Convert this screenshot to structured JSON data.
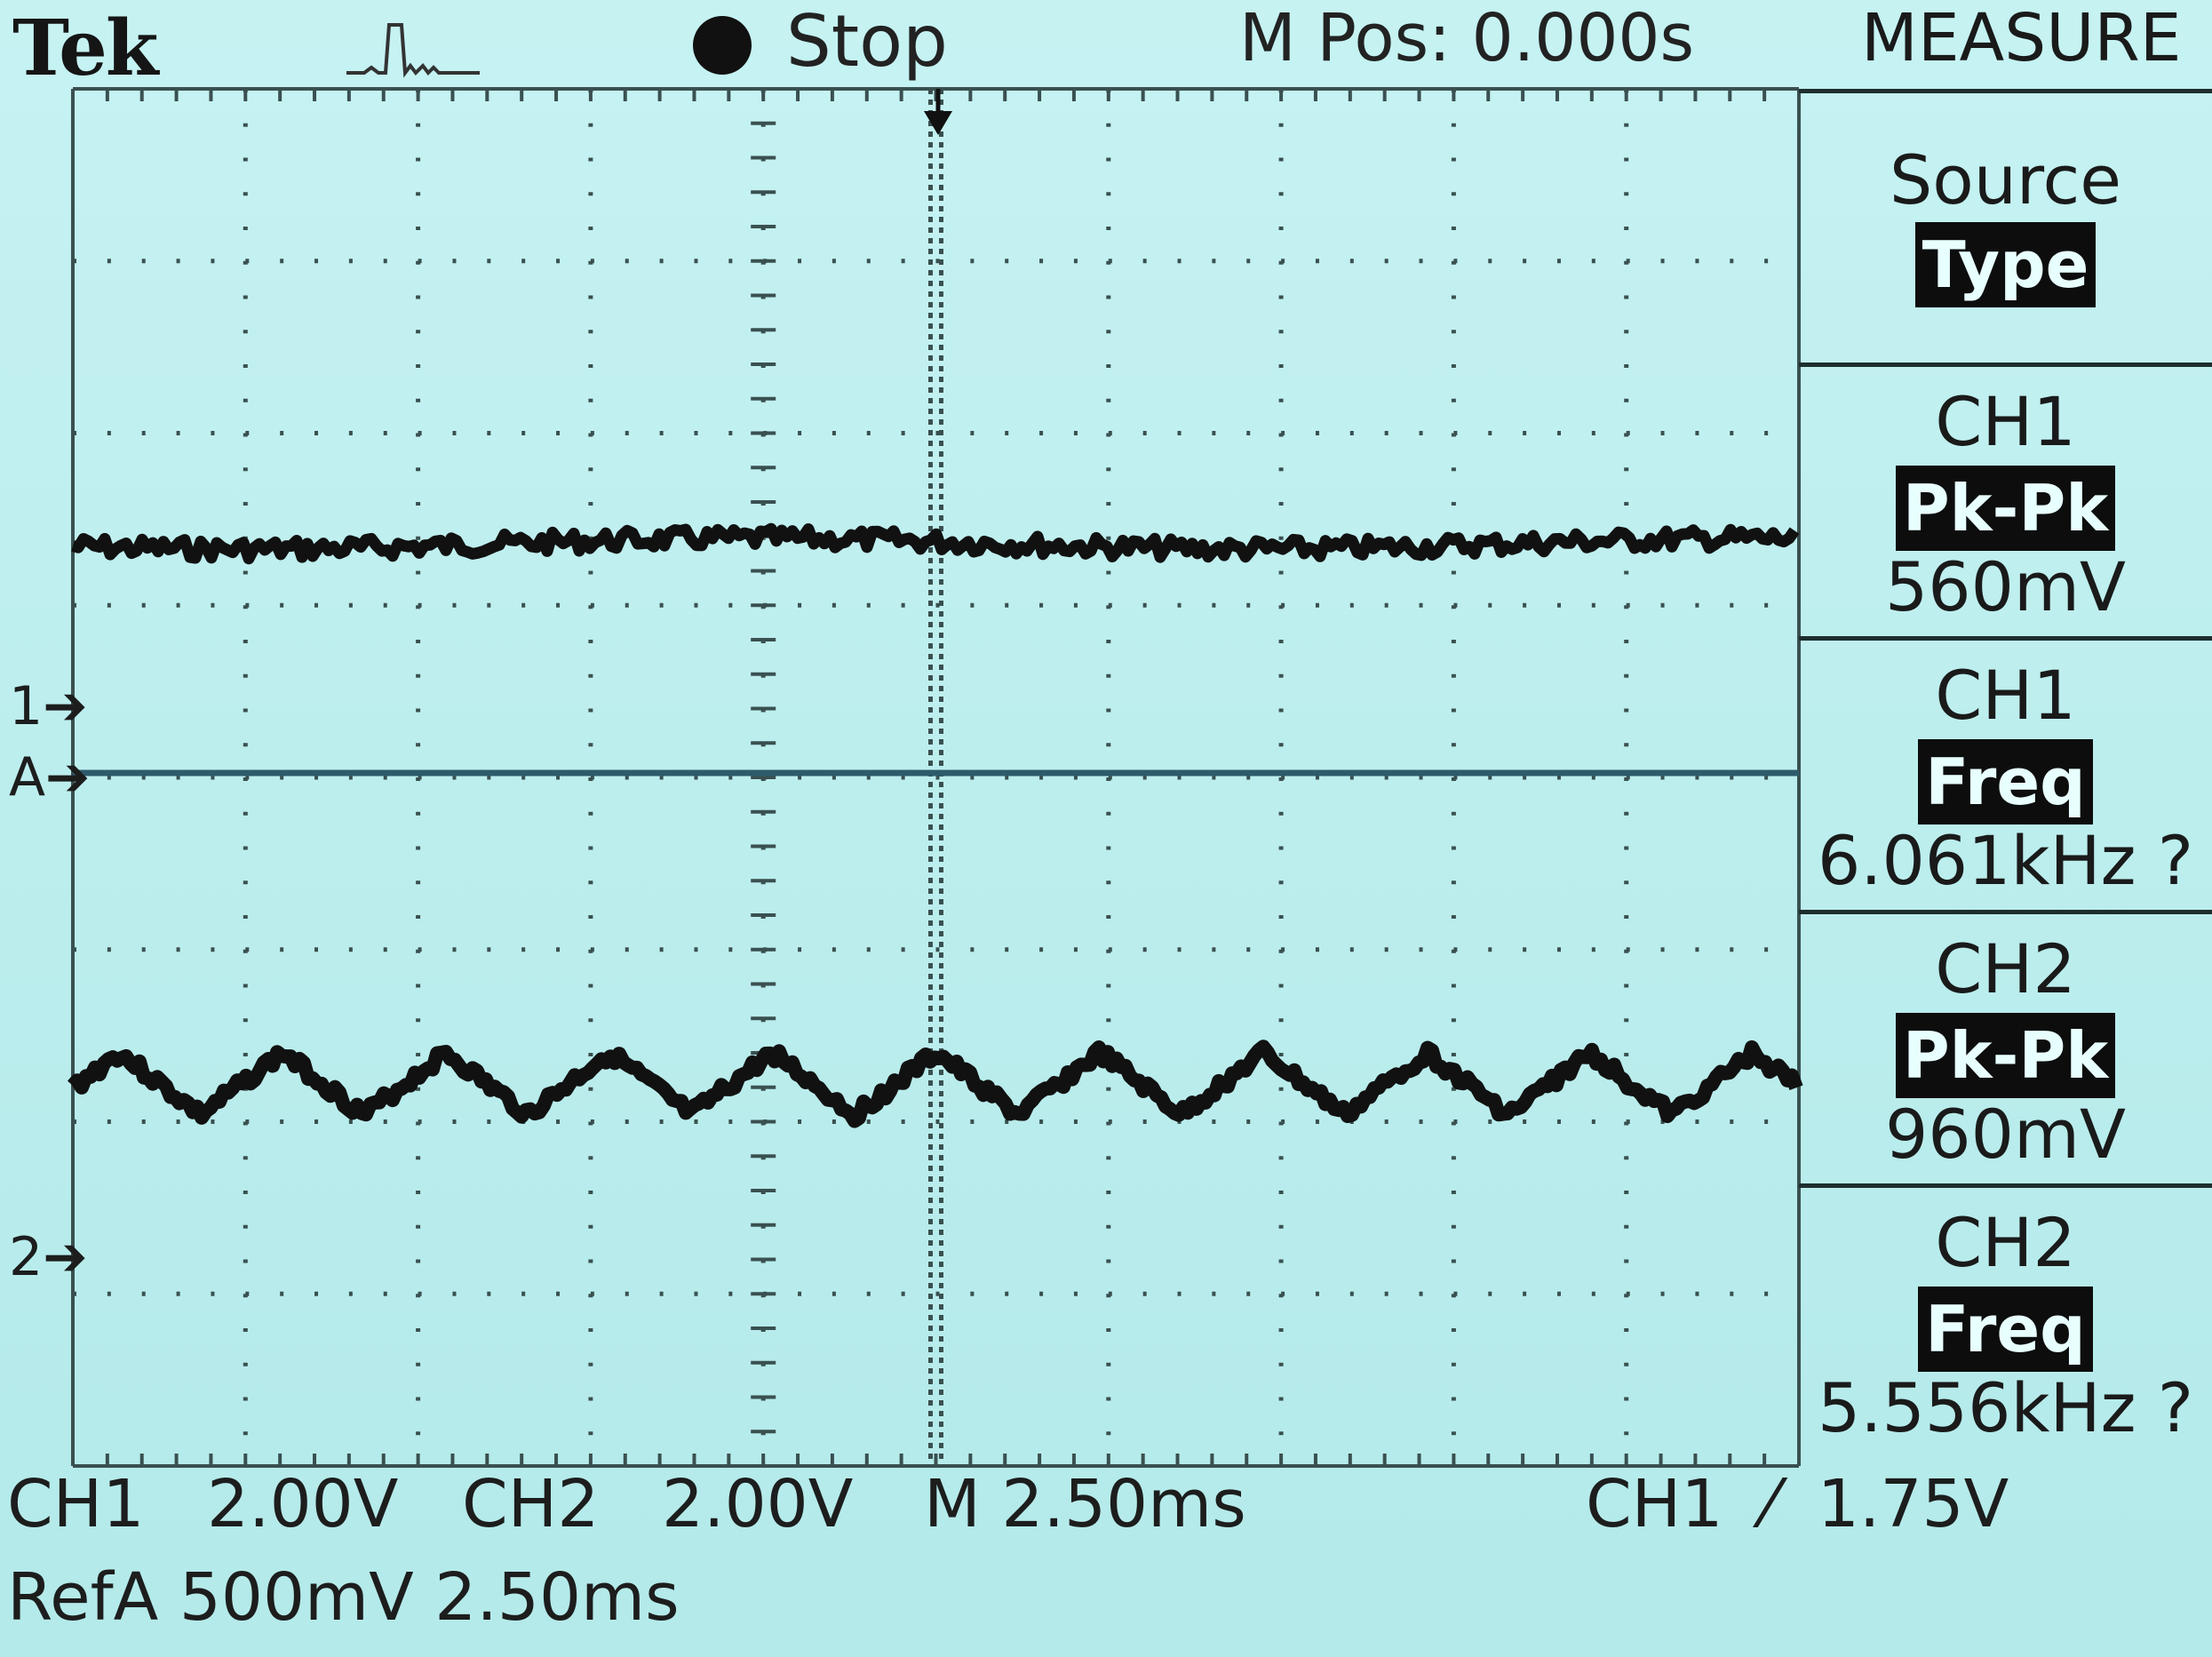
{
  "header": {
    "brand": "Tek",
    "acquisition_state": "Stop",
    "horizontal_position": "M Pos: 0.000s",
    "menu_title": "MEASURE"
  },
  "menu": {
    "source_label": "Source",
    "type_label": "Type",
    "measurements": [
      {
        "channel": "CH1",
        "type": "Pk-Pk",
        "value": "560mV"
      },
      {
        "channel": "CH1",
        "type": "Freq",
        "value": "6.061kHz ?"
      },
      {
        "channel": "CH2",
        "type": "Pk-Pk",
        "value": "960mV"
      },
      {
        "channel": "CH2",
        "type": "Freq",
        "value": "5.556kHz ?"
      }
    ]
  },
  "markers": {
    "ch1": "1",
    "ref_a": "A",
    "ch2": "2"
  },
  "status": {
    "ch1_scale": "CH1   2.00V",
    "ch2_scale": "CH2   2.00V",
    "timebase": "M 2.50ms",
    "trigger": "CH1  ⁄  1.75V",
    "ref_a": "RefA 500mV 2.50ms"
  },
  "colors": {
    "screen": "#bdeeee",
    "trace": "#111111",
    "ref_trace": "#2d5b6b"
  }
}
